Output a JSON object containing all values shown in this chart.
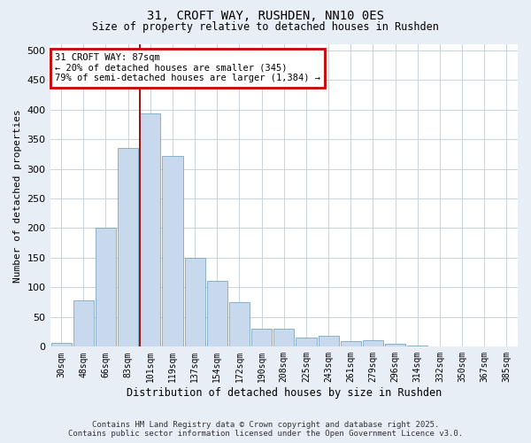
{
  "title1": "31, CROFT WAY, RUSHDEN, NN10 0ES",
  "title2": "Size of property relative to detached houses in Rushden",
  "xlabel": "Distribution of detached houses by size in Rushden",
  "ylabel": "Number of detached properties",
  "bar_color": "#c8d8ed",
  "bar_edge_color": "#6699bb",
  "grid_color": "#c8d4dd",
  "background_color": "#e8eef5",
  "plot_bg_color": "#ffffff",
  "annotation_box_color": "#cc0000",
  "vline_color": "#990000",
  "categories": [
    "30sqm",
    "48sqm",
    "66sqm",
    "83sqm",
    "101sqm",
    "119sqm",
    "137sqm",
    "154sqm",
    "172sqm",
    "190sqm",
    "208sqm",
    "225sqm",
    "243sqm",
    "261sqm",
    "279sqm",
    "296sqm",
    "314sqm",
    "332sqm",
    "350sqm",
    "367sqm",
    "385sqm"
  ],
  "values": [
    7,
    78,
    200,
    335,
    393,
    322,
    150,
    111,
    75,
    30,
    30,
    15,
    18,
    10,
    11,
    5,
    2,
    1,
    0,
    1,
    0
  ],
  "annotation_line1": "31 CROFT WAY: 87sqm",
  "annotation_line2": "← 20% of detached houses are smaller (345)",
  "annotation_line3": "79% of semi-detached houses are larger (1,384) →",
  "vline_position": 3.55,
  "ylim": [
    0,
    510
  ],
  "yticks": [
    0,
    50,
    100,
    150,
    200,
    250,
    300,
    350,
    400,
    450,
    500
  ],
  "footer1": "Contains HM Land Registry data © Crown copyright and database right 2025.",
  "footer2": "Contains public sector information licensed under the Open Government Licence v3.0."
}
